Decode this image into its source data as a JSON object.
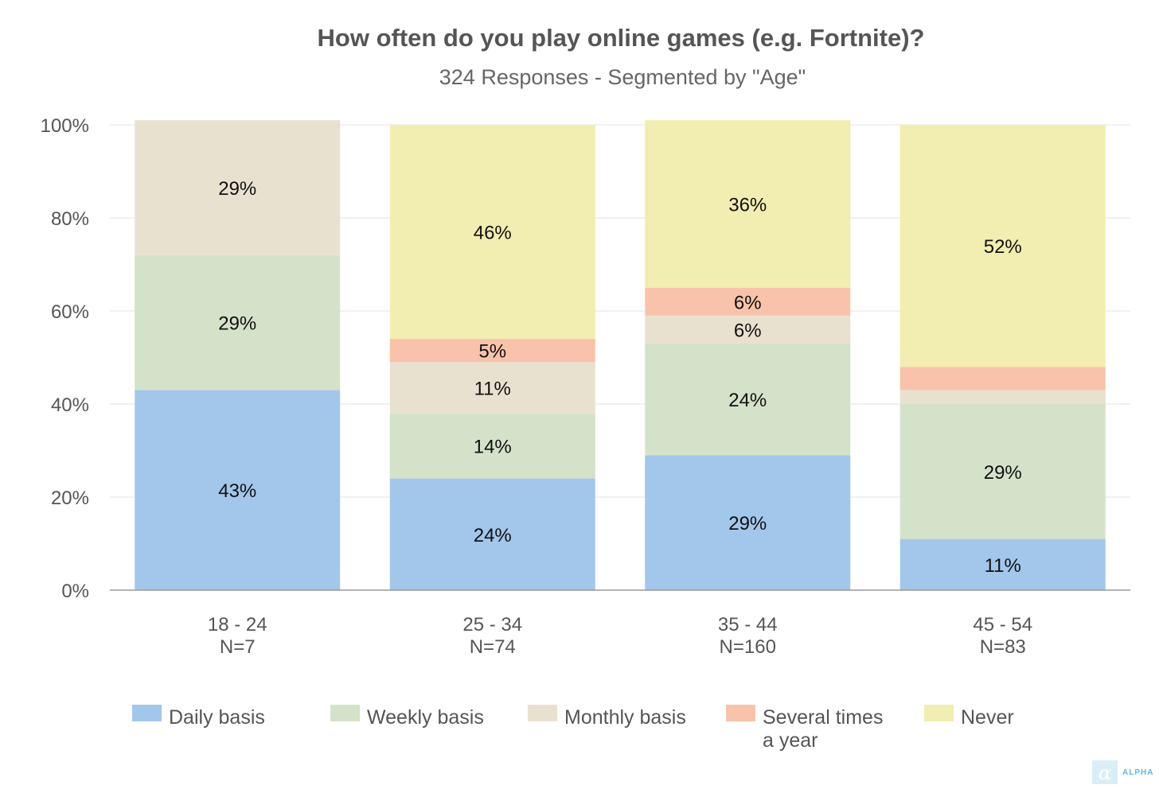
{
  "chart_data": {
    "type": "bar",
    "stacked": true,
    "title": "How often do you play online games (e.g. Fortnite)?",
    "subtitle": "324 Responses - Segmented by \"Age\"",
    "categories": [
      "18 - 24",
      "25 - 34",
      "35 - 44",
      "45 - 54"
    ],
    "category_counts": [
      "N=7",
      "N=74",
      "N=160",
      "N=83"
    ],
    "ylim": [
      0,
      100
    ],
    "yticks": [
      "0%",
      "20%",
      "40%",
      "60%",
      "80%",
      "100%"
    ],
    "grid": true,
    "legend_position": "bottom",
    "series": [
      {
        "name": "Daily basis",
        "color": "#a3c7eb",
        "values": [
          43,
          24,
          29,
          11
        ],
        "labels": [
          "43%",
          "24%",
          "29%",
          "11%"
        ]
      },
      {
        "name": "Weekly basis",
        "color": "#d4e2c9",
        "values": [
          29,
          14,
          24,
          29
        ],
        "labels": [
          "29%",
          "14%",
          "24%",
          "29%"
        ]
      },
      {
        "name": "Monthly basis",
        "color": "#e9e1d0",
        "values": [
          29,
          11,
          6,
          3
        ],
        "labels": [
          "29%",
          "11%",
          "6%",
          ""
        ]
      },
      {
        "name": "Several times a year",
        "name_lines": [
          "Several times",
          "a year"
        ],
        "color": "#f8c3aa",
        "values": [
          0,
          5,
          6,
          5
        ],
        "labels": [
          "",
          "5%",
          "6%",
          ""
        ]
      },
      {
        "name": "Never",
        "color": "#f2edb0",
        "values": [
          0,
          46,
          36,
          52
        ],
        "labels": [
          "",
          "46%",
          "36%",
          "52%"
        ]
      }
    ]
  },
  "branding": {
    "logo_glyph": "α",
    "logo_text": "ALPHA",
    "logo_color": "#5fb9df"
  }
}
